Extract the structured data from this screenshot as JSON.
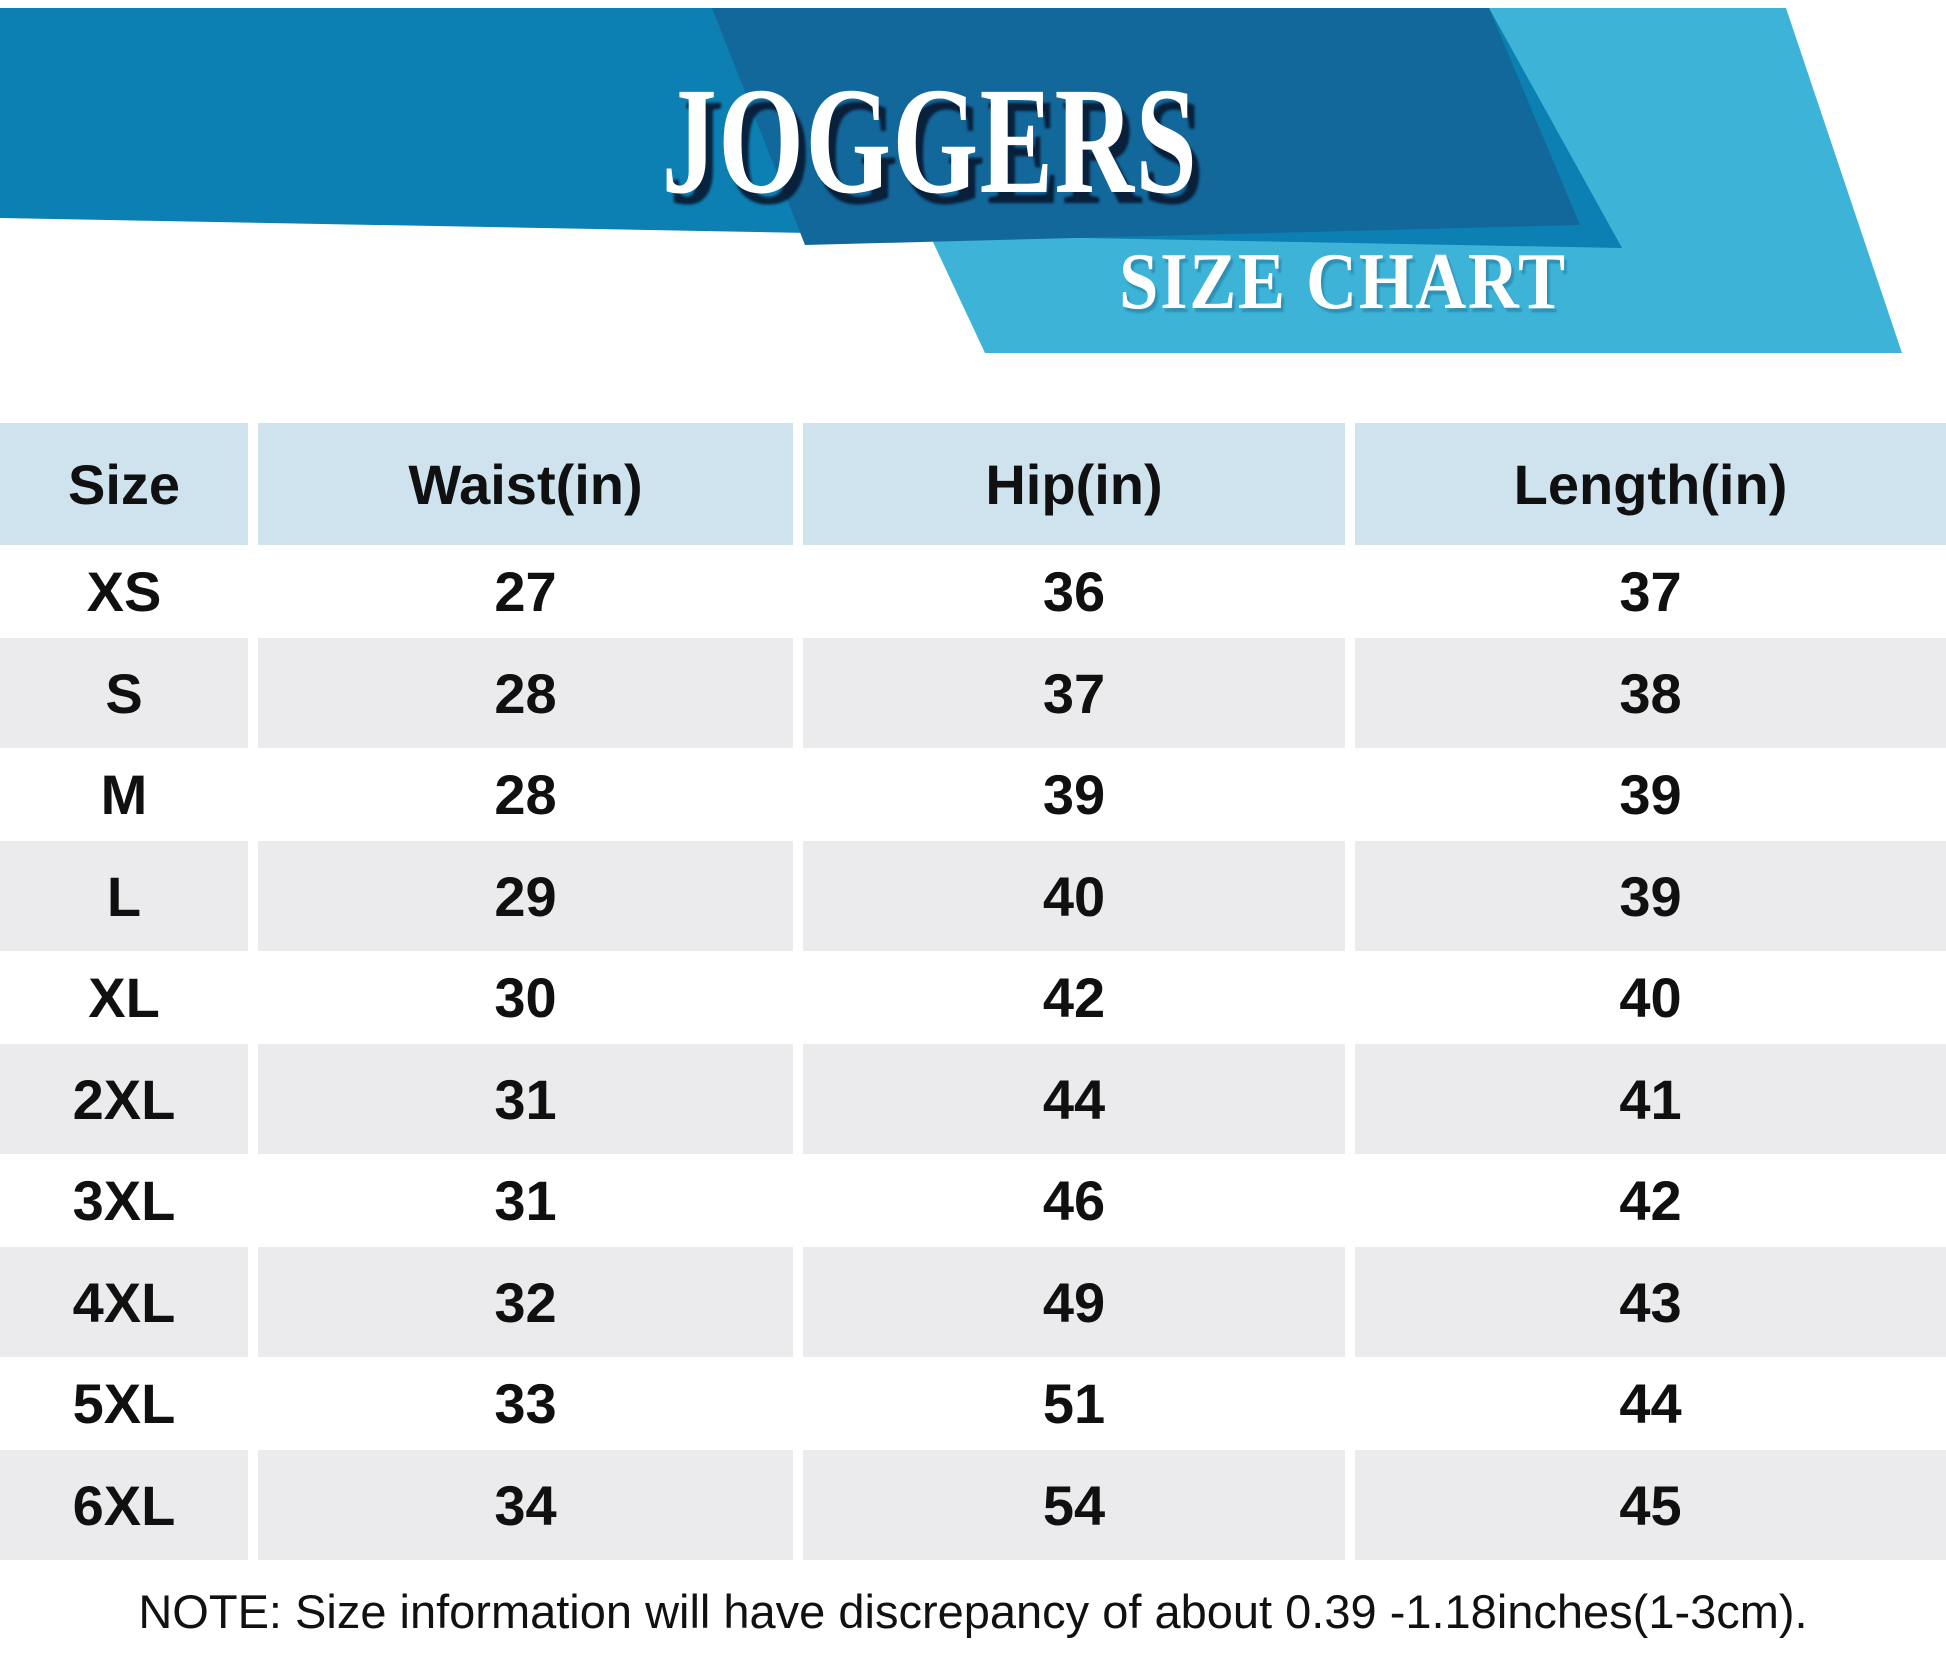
{
  "header": {
    "title": "JOGGERS",
    "subtitle": "SIZE CHART"
  },
  "colors": {
    "band-medium": "#0c80b3",
    "band-dark": "#12689b",
    "band-cyan": "#3db3d8",
    "header-cell-bg": "#cfe3ef",
    "row-alt-bg": "#ebebee",
    "cell-text": "#101010",
    "note-text": "#111111"
  },
  "table": {
    "columns": [
      "Size",
      "Waist(in)",
      "Hip(in)",
      "Length(in)"
    ],
    "rows": [
      [
        "XS",
        "27",
        "36",
        "37"
      ],
      [
        "S",
        "28",
        "37",
        "38"
      ],
      [
        "M",
        "28",
        "39",
        "39"
      ],
      [
        "L",
        "29",
        "40",
        "39"
      ],
      [
        "XL",
        "30",
        "42",
        "40"
      ],
      [
        "2XL",
        "31",
        "44",
        "41"
      ],
      [
        "3XL",
        "31",
        "46",
        "42"
      ],
      [
        "4XL",
        "32",
        "49",
        "43"
      ],
      [
        "5XL",
        "33",
        "51",
        "44"
      ],
      [
        "6XL",
        "34",
        "54",
        "45"
      ]
    ]
  },
  "note": "NOTE: Size information will have discrepancy of about 0.39 -1.18inches(1-3cm).",
  "chart_data": {
    "type": "table",
    "title": "JOGGERS SIZE CHART",
    "columns": [
      "Size",
      "Waist(in)",
      "Hip(in)",
      "Length(in)"
    ],
    "rows": [
      {
        "size": "XS",
        "waist_in": 27,
        "hip_in": 36,
        "length_in": 37
      },
      {
        "size": "S",
        "waist_in": 28,
        "hip_in": 37,
        "length_in": 38
      },
      {
        "size": "M",
        "waist_in": 28,
        "hip_in": 39,
        "length_in": 39
      },
      {
        "size": "L",
        "waist_in": 29,
        "hip_in": 40,
        "length_in": 39
      },
      {
        "size": "XL",
        "waist_in": 30,
        "hip_in": 42,
        "length_in": 40
      },
      {
        "size": "2XL",
        "waist_in": 31,
        "hip_in": 44,
        "length_in": 41
      },
      {
        "size": "3XL",
        "waist_in": 31,
        "hip_in": 46,
        "length_in": 42
      },
      {
        "size": "4XL",
        "waist_in": 32,
        "hip_in": 49,
        "length_in": 43
      },
      {
        "size": "5XL",
        "waist_in": 33,
        "hip_in": 51,
        "length_in": 44
      },
      {
        "size": "6XL",
        "waist_in": 34,
        "hip_in": 54,
        "length_in": 45
      }
    ],
    "note": "NOTE: Size information will have discrepancy of about 0.39 -1.18inches(1-3cm)."
  }
}
